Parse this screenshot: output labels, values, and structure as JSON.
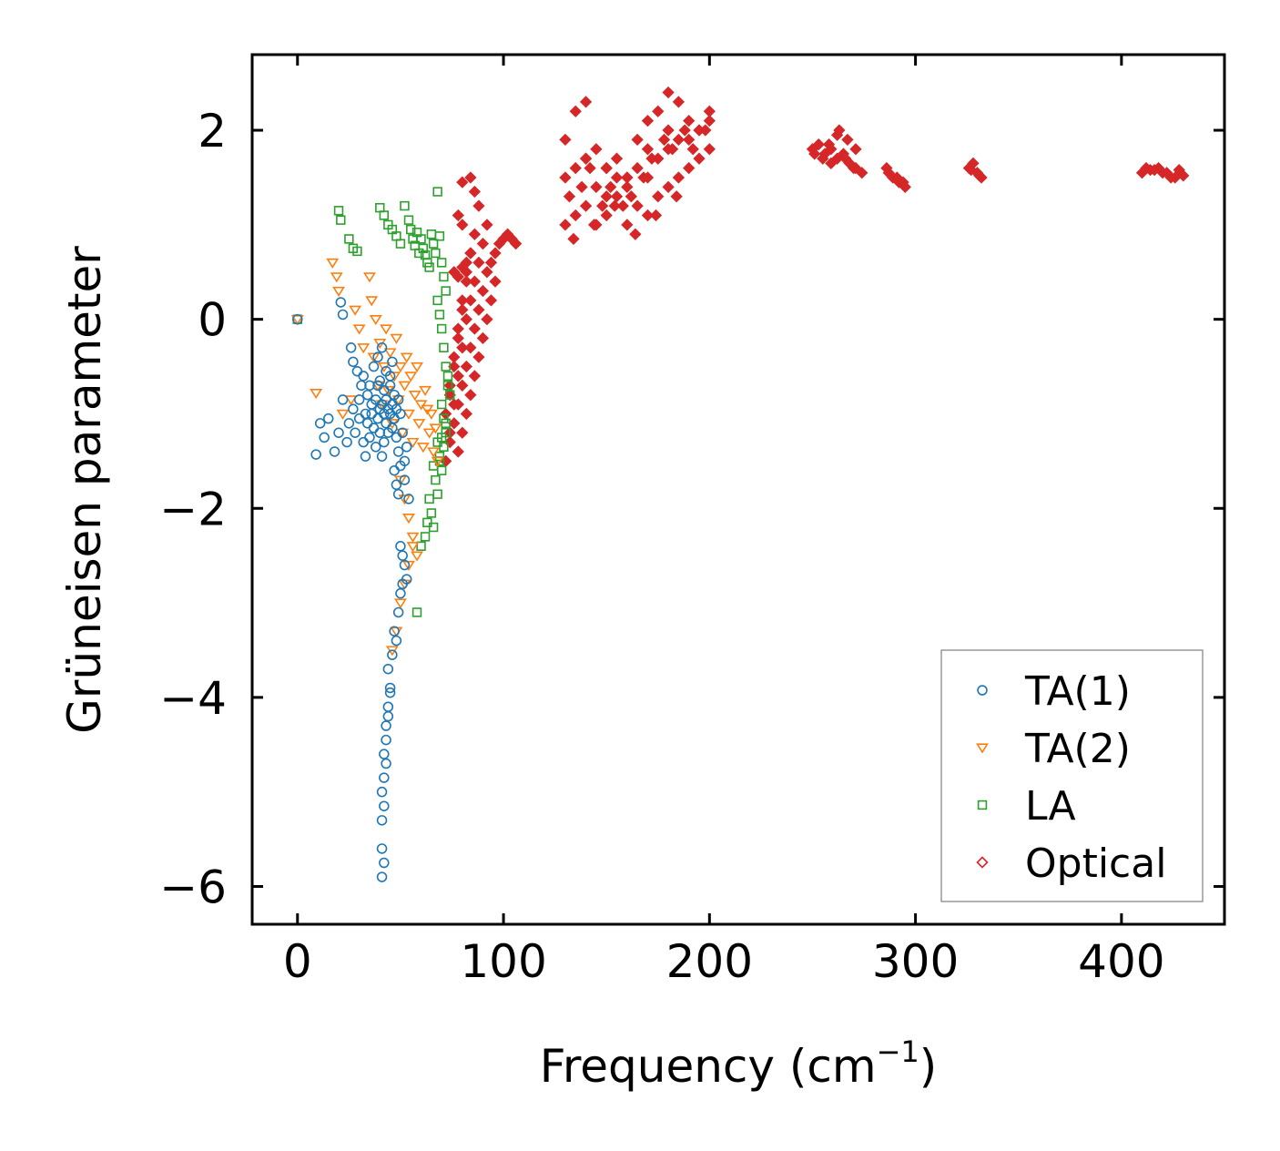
{
  "chart_data": {
    "type": "scatter",
    "title": "",
    "xlabel": "Frequency (cm",
    "xlabel_sup": "−1",
    "xlabel_suffix": ")",
    "ylabel": "Grüneisen parameter",
    "xlim": [
      -22,
      450
    ],
    "ylim": [
      -6.4,
      2.8
    ],
    "x_ticks": [
      0,
      100,
      200,
      300,
      400
    ],
    "y_ticks": [
      -6,
      -4,
      -2,
      0,
      2
    ],
    "x_tick_labels": [
      "0",
      "100",
      "200",
      "300",
      "400"
    ],
    "y_tick_labels": [
      "−6",
      "−4",
      "−2",
      "0",
      "2"
    ],
    "grid": false,
    "legend_position": "bottom-right",
    "series": [
      {
        "name": "TA(1)",
        "marker": "circle",
        "color": "#1f77b4",
        "x": [
          0,
          9,
          11,
          13,
          15,
          18,
          20,
          21,
          22,
          22,
          24,
          25,
          26,
          27,
          27,
          28,
          29,
          30,
          30,
          31,
          32,
          32,
          33,
          33,
          34,
          34,
          35,
          35,
          36,
          36,
          37,
          37,
          38,
          38,
          39,
          39,
          39,
          40,
          40,
          40,
          41,
          41,
          41,
          42,
          42,
          42,
          43,
          43,
          43,
          44,
          44,
          45,
          45,
          46,
          46,
          47,
          47,
          48,
          48,
          49,
          49,
          50,
          50,
          51,
          52,
          52,
          53,
          54,
          45,
          46,
          47,
          48,
          49,
          50,
          51,
          52,
          53,
          47,
          48,
          49,
          50,
          51,
          44,
          45,
          46,
          43,
          44,
          45,
          42,
          43,
          44,
          41,
          42,
          43,
          41,
          42,
          41,
          42,
          41
        ],
        "y": [
          0.0,
          -1.43,
          -1.1,
          -1.25,
          -1.05,
          -1.4,
          -1.2,
          0.18,
          0.05,
          -0.85,
          -1.3,
          -1.1,
          -0.3,
          -0.45,
          -0.95,
          -1.2,
          -0.55,
          -1.05,
          -0.85,
          -0.7,
          -1.3,
          -0.6,
          -1.0,
          -1.45,
          -0.8,
          -1.1,
          -0.7,
          -1.25,
          -0.9,
          -1.0,
          -0.5,
          -1.15,
          -0.85,
          -1.35,
          -0.4,
          -0.7,
          -1.05,
          -0.95,
          -0.65,
          -1.2,
          -0.3,
          -0.9,
          -1.45,
          -0.75,
          -1.0,
          -1.3,
          -0.55,
          -0.85,
          -1.1,
          -0.95,
          -1.2,
          -0.7,
          -1.0,
          -0.9,
          -1.15,
          -0.8,
          -1.05,
          -0.95,
          -1.25,
          -0.85,
          -1.4,
          -1.0,
          -1.55,
          -1.2,
          -1.5,
          -1.7,
          -1.35,
          -1.9,
          -0.6,
          -0.45,
          -1.6,
          -1.75,
          -1.85,
          -2.4,
          -2.5,
          -2.6,
          -2.75,
          -3.3,
          -3.4,
          -3.1,
          -2.9,
          -2.8,
          -3.7,
          -3.9,
          -3.55,
          -4.3,
          -4.1,
          -3.95,
          -4.6,
          -4.45,
          -4.2,
          -5.0,
          -4.85,
          -4.7,
          -5.3,
          -5.15,
          -5.6,
          -5.75,
          -5.9
        ],
        "label": "TA(1)"
      },
      {
        "name": "TA(2)",
        "marker": "triangle-down",
        "color": "#ff7f0e",
        "x": [
          0,
          9,
          17,
          19,
          20,
          22,
          26,
          28,
          30,
          32,
          35,
          36,
          37,
          38,
          39,
          40,
          41,
          42,
          43,
          44,
          45,
          46,
          47,
          48,
          49,
          50,
          51,
          52,
          53,
          54,
          55,
          56,
          57,
          58,
          59,
          60,
          61,
          62,
          63,
          64,
          65,
          66,
          67,
          68,
          50,
          52,
          54,
          56,
          58,
          46,
          48,
          50,
          52,
          54,
          56
        ],
        "y": [
          0.0,
          -0.78,
          0.6,
          0.45,
          0.3,
          -1.0,
          -0.85,
          0.1,
          -0.1,
          -0.3,
          0.45,
          0.2,
          -0.4,
          0.0,
          -0.7,
          -0.25,
          -0.9,
          -0.5,
          -0.1,
          -0.75,
          -0.35,
          -1.1,
          -0.6,
          -0.2,
          -0.85,
          -0.5,
          -1.2,
          -0.7,
          -0.4,
          -1.0,
          -0.6,
          -1.3,
          -0.8,
          -0.5,
          -1.1,
          -0.9,
          -1.35,
          -0.75,
          -0.95,
          -1.2,
          -1.0,
          -1.4,
          -1.15,
          -1.5,
          -1.7,
          -1.9,
          -2.1,
          -2.3,
          -2.5,
          -3.5,
          -3.3,
          -3.0,
          -2.8,
          -2.6,
          -2.4
        ],
        "label": "TA(2)"
      },
      {
        "name": "LA",
        "marker": "square",
        "color": "#2ca02c",
        "x": [
          0,
          20,
          21,
          25,
          27,
          29,
          40,
          42,
          44,
          46,
          48,
          50,
          52,
          54,
          55,
          56,
          57,
          58,
          59,
          60,
          61,
          62,
          63,
          64,
          65,
          66,
          67,
          68,
          69,
          70,
          71,
          72,
          68,
          69,
          70,
          71,
          72,
          73,
          70,
          71,
          72,
          73,
          74,
          68,
          69,
          70,
          71,
          72,
          66,
          67,
          68,
          69,
          70,
          64,
          65,
          66,
          62,
          63,
          60,
          58
        ],
        "y": [
          0.0,
          1.15,
          1.05,
          0.85,
          0.75,
          0.72,
          1.18,
          1.1,
          1.0,
          0.95,
          0.88,
          0.8,
          1.2,
          1.05,
          0.95,
          0.85,
          0.78,
          0.92,
          0.7,
          0.85,
          0.75,
          0.68,
          0.6,
          0.55,
          0.9,
          0.8,
          0.7,
          1.35,
          0.88,
          0.6,
          0.45,
          0.3,
          0.2,
          0.05,
          -0.1,
          -0.3,
          -0.5,
          -0.7,
          -0.9,
          -1.05,
          -1.2,
          -0.6,
          -0.8,
          -1.3,
          -1.45,
          -1.6,
          -1.35,
          -1.1,
          -1.55,
          -1.7,
          -1.85,
          -1.5,
          -1.25,
          -1.9,
          -2.05,
          -2.2,
          -2.3,
          -2.15,
          -2.4,
          -3.1
        ],
        "label": "LA"
      },
      {
        "name": "Optical",
        "marker": "diamond",
        "color": "#d62728",
        "x": [
          72,
          74,
          76,
          78,
          80,
          82,
          84,
          86,
          88,
          90,
          92,
          94,
          96,
          98,
          100,
          102,
          104,
          106,
          78,
          80,
          82,
          84,
          86,
          88,
          90,
          92,
          94,
          96,
          74,
          76,
          78,
          80,
          82,
          84,
          86,
          88,
          90,
          92,
          72,
          74,
          76,
          78,
          80,
          82,
          84,
          86,
          74,
          76,
          78,
          80,
          82,
          84,
          76,
          78,
          80,
          82,
          80,
          84,
          86,
          88,
          78,
          80,
          130,
          135,
          140,
          145,
          150,
          155,
          160,
          165,
          170,
          175,
          180,
          185,
          190,
          195,
          200,
          130,
          135,
          140,
          145,
          150,
          155,
          160,
          165,
          170,
          175,
          180,
          185,
          190,
          195,
          200,
          130,
          135,
          140,
          145,
          150,
          155,
          160,
          165,
          170,
          175,
          180,
          185,
          190,
          195,
          200,
          132,
          138,
          142,
          148,
          152,
          158,
          162,
          168,
          172,
          178,
          182,
          188,
          192,
          198,
          134,
          144,
          154,
          164,
          174,
          184,
          140,
          150,
          160,
          170,
          180,
          250,
          253,
          256,
          259,
          262,
          265,
          268,
          271,
          274,
          251,
          255,
          259,
          263,
          267,
          271,
          258,
          262,
          266,
          270,
          286,
          289,
          292,
          295,
          287,
          291,
          294,
          326,
          328,
          330,
          332,
          327,
          331,
          410,
          414,
          418,
          422,
          426,
          430,
          412,
          416,
          420,
          424,
          428
        ],
        "y": [
          -1.5,
          -1.3,
          -1.1,
          -0.9,
          -0.7,
          -0.5,
          -0.3,
          -0.1,
          0.1,
          0.3,
          0.5,
          0.6,
          0.7,
          0.8,
          0.85,
          0.9,
          0.85,
          0.8,
          -1.4,
          -1.2,
          -1.0,
          -0.8,
          -0.6,
          -0.4,
          -0.2,
          0.0,
          0.2,
          0.4,
          -1.2,
          -0.9,
          -0.6,
          -0.3,
          0.0,
          0.2,
          0.4,
          0.6,
          0.8,
          1.0,
          -1.0,
          -0.7,
          -0.4,
          -0.1,
          0.2,
          0.5,
          0.7,
          0.9,
          -0.8,
          -0.5,
          -0.2,
          0.1,
          0.4,
          0.7,
          0.5,
          0.45,
          0.55,
          0.6,
          1.45,
          1.5,
          1.35,
          1.2,
          1.1,
          1.0,
          1.9,
          2.2,
          2.3,
          1.8,
          1.6,
          1.7,
          1.5,
          1.9,
          2.1,
          2.2,
          2.4,
          2.3,
          2.1,
          2.0,
          2.2,
          1.0,
          1.1,
          1.2,
          1.0,
          1.1,
          1.3,
          1.0,
          1.2,
          1.1,
          1.3,
          1.4,
          1.5,
          1.6,
          1.7,
          1.8,
          1.5,
          1.6,
          1.7,
          1.4,
          1.3,
          1.5,
          1.4,
          1.6,
          1.5,
          1.7,
          1.8,
          1.9,
          1.9,
          2.0,
          2.1,
          1.3,
          1.4,
          1.6,
          1.2,
          1.4,
          1.2,
          1.3,
          1.5,
          1.7,
          1.9,
          1.8,
          2.0,
          1.8,
          2.0,
          0.85,
          1.0,
          1.2,
          0.9,
          1.1,
          1.3,
          1.7,
          1.6,
          1.5,
          1.8,
          2.0,
          1.8,
          1.85,
          1.75,
          1.8,
          1.7,
          1.75,
          1.65,
          1.6,
          1.55,
          1.75,
          1.7,
          1.65,
          2.0,
          1.9,
          1.8,
          1.85,
          1.95,
          1.7,
          1.6,
          1.6,
          1.5,
          1.45,
          1.4,
          1.55,
          1.5,
          1.45,
          1.6,
          1.65,
          1.55,
          1.5,
          1.58,
          1.52,
          1.55,
          1.58,
          1.6,
          1.55,
          1.5,
          1.52,
          1.6,
          1.58,
          1.55,
          1.5,
          1.58
        ],
        "label": "Optical"
      }
    ]
  }
}
